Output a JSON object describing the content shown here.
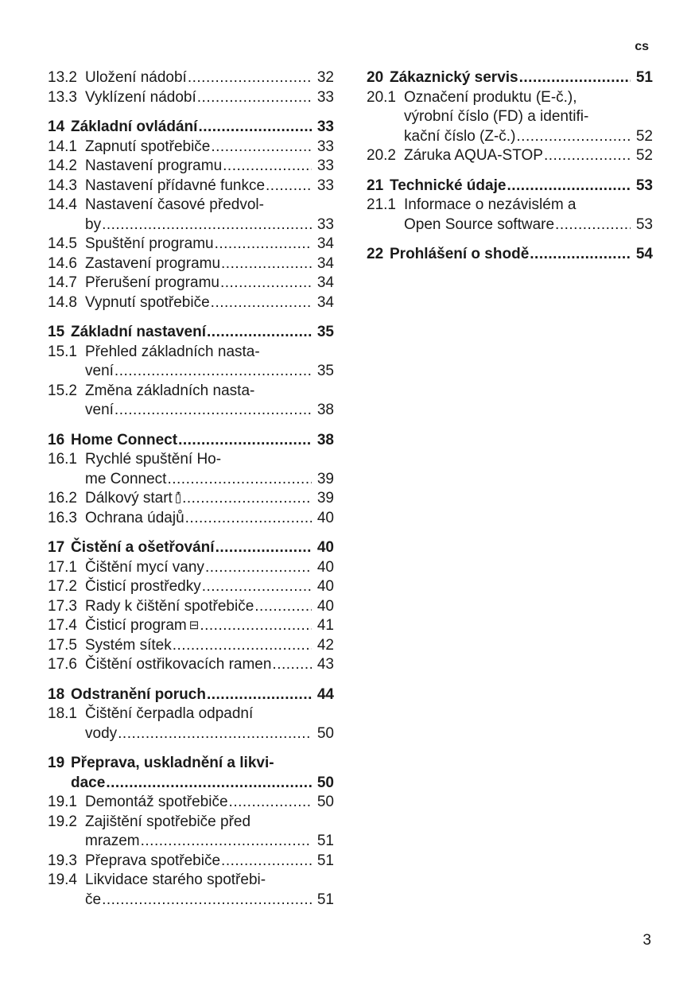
{
  "header": {
    "language": "cs"
  },
  "footer": {
    "page_number": "3"
  },
  "columns": [
    [
      {
        "num": "13.2",
        "lines": [
          "Uložení nádobí"
        ],
        "page": "32"
      },
      {
        "num": "13.3",
        "lines": [
          "Vyklízení nádobí"
        ],
        "page": "33"
      },
      {
        "num": "14",
        "lines": [
          "Základní ovládání"
        ],
        "page": "33",
        "chapter": true
      },
      {
        "num": "14.1",
        "lines": [
          "Zapnutí spotřebiče"
        ],
        "page": "33"
      },
      {
        "num": "14.2",
        "lines": [
          "Nastavení programu"
        ],
        "page": "33"
      },
      {
        "num": "14.3",
        "lines": [
          "Nastavení přídavné funkce"
        ],
        "page": "33"
      },
      {
        "num": "14.4",
        "lines": [
          "Nastavení časové předvol-",
          "by"
        ],
        "page": "33"
      },
      {
        "num": "14.5",
        "lines": [
          "Spuštění programu"
        ],
        "page": "34"
      },
      {
        "num": "14.6",
        "lines": [
          "Zastavení programu"
        ],
        "page": "34"
      },
      {
        "num": "14.7",
        "lines": [
          "Přerušení programu"
        ],
        "page": "34"
      },
      {
        "num": "14.8",
        "lines": [
          "Vypnutí spotřebiče"
        ],
        "page": "34"
      },
      {
        "num": "15",
        "lines": [
          "Základní nastavení"
        ],
        "page": "35",
        "chapter": true
      },
      {
        "num": "15.1",
        "lines": [
          "Přehled základních nasta-",
          "vení"
        ],
        "page": "35"
      },
      {
        "num": "15.2",
        "lines": [
          "Změna základních nasta-",
          "vení"
        ],
        "page": "38"
      },
      {
        "num": "16",
        "lines": [
          "Home Connect"
        ],
        "page": "38",
        "chapter": true
      },
      {
        "num": "16.1",
        "lines": [
          "Rychlé spuštění Ho-",
          "me Connect"
        ],
        "page": "39"
      },
      {
        "num": "16.2",
        "lines": [
          "Dálkový start"
        ],
        "page": "39",
        "icon": "remote-start-icon",
        "glyph": "▯͒"
      },
      {
        "num": "16.3",
        "lines": [
          "Ochrana údajů"
        ],
        "page": "40"
      },
      {
        "num": "17",
        "lines": [
          "Čistění a ošetřování"
        ],
        "page": "40",
        "chapter": true
      },
      {
        "num": "17.1",
        "lines": [
          "Čištění mycí vany"
        ],
        "page": "40"
      },
      {
        "num": "17.2",
        "lines": [
          "Čisticí prostředky"
        ],
        "page": "40"
      },
      {
        "num": "17.3",
        "lines": [
          "Rady k čištění spotřebiče"
        ],
        "page": "40"
      },
      {
        "num": "17.4",
        "lines": [
          "Čisticí program"
        ],
        "page": "41",
        "icon": "machine-care-icon",
        "glyph": "⊟"
      },
      {
        "num": "17.5",
        "lines": [
          "Systém sítek"
        ],
        "page": "42"
      },
      {
        "num": "17.6",
        "lines": [
          "Čištění ostřikovacích ramen"
        ],
        "page": "43"
      },
      {
        "num": "18",
        "lines": [
          "Odstranění poruch"
        ],
        "page": "44",
        "chapter": true
      },
      {
        "num": "18.1",
        "lines": [
          "Čištění čerpadla odpadní",
          "vody"
        ],
        "page": "50"
      },
      {
        "num": "19",
        "lines": [
          "Přeprava, uskladnění a likvi-",
          "dace"
        ],
        "page": "50",
        "chapter": true
      },
      {
        "num": "19.1",
        "lines": [
          "Demontáž spotřebiče"
        ],
        "page": "50"
      },
      {
        "num": "19.2",
        "lines": [
          "Zajištění spotřebiče před",
          "mrazem"
        ],
        "page": "51"
      },
      {
        "num": "19.3",
        "lines": [
          "Přeprava spotřebiče"
        ],
        "page": "51"
      },
      {
        "num": "19.4",
        "lines": [
          "Likvidace starého spotřebi-",
          "če"
        ],
        "page": "51"
      }
    ],
    [
      {
        "num": "20",
        "lines": [
          "Zákaznický servis"
        ],
        "page": "51",
        "chapter": true
      },
      {
        "num": "20.1",
        "lines": [
          "Označení produktu (E-č.),",
          "výrobní číslo (FD) a identifi-",
          "kační číslo (Z-č.)"
        ],
        "page": "52"
      },
      {
        "num": "20.2",
        "lines": [
          "Záruka AQUA-STOP"
        ],
        "page": "52"
      },
      {
        "num": "21",
        "lines": [
          "Technické údaje"
        ],
        "page": "53",
        "chapter": true
      },
      {
        "num": "21.1",
        "lines": [
          "Informace o nezávislém a",
          "Open Source software"
        ],
        "page": "53"
      },
      {
        "num": "22",
        "lines": [
          "Prohlášení o shodě"
        ],
        "page": "54",
        "chapter": true
      }
    ]
  ]
}
